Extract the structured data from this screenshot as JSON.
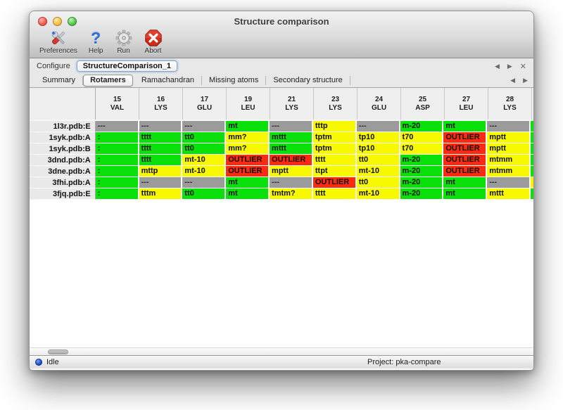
{
  "window": {
    "title": "Structure comparison"
  },
  "toolbar": {
    "items": [
      {
        "label": "Preferences",
        "icon": "preferences-icon"
      },
      {
        "label": "Help",
        "icon": "help-icon"
      },
      {
        "label": "Run",
        "icon": "run-icon"
      },
      {
        "label": "Abort",
        "icon": "abort-icon"
      }
    ]
  },
  "icons": {
    "prev": "◀",
    "next": "▶",
    "close": "✕",
    "help": "?"
  },
  "configure": {
    "label": "Configure",
    "selected": "StructureComparison_1"
  },
  "tabs": {
    "items": [
      "Summary",
      "Rotamers",
      "Ramachandran",
      "Missing atoms",
      "Secondary structure"
    ],
    "active": "Rotamers"
  },
  "colors": {
    "good": "#0ae00a",
    "caution": "#f8f800",
    "outlier": "#fb2a10",
    "missing": "#9b9b9b"
  },
  "table": {
    "columns": [
      {
        "num": "15",
        "res": "VAL"
      },
      {
        "num": "16",
        "res": "LYS"
      },
      {
        "num": "17",
        "res": "GLU"
      },
      {
        "num": "19",
        "res": "LEU"
      },
      {
        "num": "21",
        "res": "LYS"
      },
      {
        "num": "23",
        "res": "LYS"
      },
      {
        "num": "24",
        "res": "GLU"
      },
      {
        "num": "25",
        "res": "ASP"
      },
      {
        "num": "27",
        "res": "LEU"
      },
      {
        "num": "28",
        "res": "LYS"
      }
    ],
    "rows": [
      {
        "label": "1l3r.pdb:E",
        "cells": [
          {
            "v": "---",
            "s": "missing"
          },
          {
            "v": "---",
            "s": "missing"
          },
          {
            "v": "---",
            "s": "missing"
          },
          {
            "v": "mt",
            "s": "good"
          },
          {
            "v": "---",
            "s": "missing"
          },
          {
            "v": "tttp",
            "s": "caution"
          },
          {
            "v": "---",
            "s": "missing"
          },
          {
            "v": "m-20",
            "s": "good"
          },
          {
            "v": "mt",
            "s": "good"
          },
          {
            "v": "---",
            "s": "missing"
          }
        ],
        "overflow": "good"
      },
      {
        "label": "1syk.pdb:A",
        "cells": [
          {
            "v": ":",
            "s": "good"
          },
          {
            "v": "tttt",
            "s": "good"
          },
          {
            "v": "tt0",
            "s": "good"
          },
          {
            "v": "mm?",
            "s": "caution"
          },
          {
            "v": "mttt",
            "s": "good"
          },
          {
            "v": "tptm",
            "s": "caution"
          },
          {
            "v": "tp10",
            "s": "caution"
          },
          {
            "v": "t70",
            "s": "caution"
          },
          {
            "v": "OUTLIER",
            "s": "outlier"
          },
          {
            "v": "mptt",
            "s": "caution"
          }
        ],
        "overflow": "good"
      },
      {
        "label": "1syk.pdb:B",
        "cells": [
          {
            "v": ":",
            "s": "good"
          },
          {
            "v": "tttt",
            "s": "good"
          },
          {
            "v": "tt0",
            "s": "good"
          },
          {
            "v": "mm?",
            "s": "caution"
          },
          {
            "v": "mttt",
            "s": "good"
          },
          {
            "v": "tptm",
            "s": "caution"
          },
          {
            "v": "tp10",
            "s": "caution"
          },
          {
            "v": "t70",
            "s": "caution"
          },
          {
            "v": "OUTLIER",
            "s": "outlier"
          },
          {
            "v": "mptt",
            "s": "caution"
          }
        ],
        "overflow": "good"
      },
      {
        "label": "3dnd.pdb:A",
        "cells": [
          {
            "v": ":",
            "s": "good"
          },
          {
            "v": "tttt",
            "s": "good"
          },
          {
            "v": "mt-10",
            "s": "caution"
          },
          {
            "v": "OUTLIER",
            "s": "outlier"
          },
          {
            "v": "OUTLIER",
            "s": "outlier"
          },
          {
            "v": "tttt",
            "s": "caution"
          },
          {
            "v": "tt0",
            "s": "caution"
          },
          {
            "v": "m-20",
            "s": "good"
          },
          {
            "v": "OUTLIER",
            "s": "outlier"
          },
          {
            "v": "mtmm",
            "s": "caution"
          }
        ],
        "overflow": "good"
      },
      {
        "label": "3dne.pdb:A",
        "cells": [
          {
            "v": ":",
            "s": "good"
          },
          {
            "v": "mttp",
            "s": "caution"
          },
          {
            "v": "mt-10",
            "s": "caution"
          },
          {
            "v": "OUTLIER",
            "s": "outlier"
          },
          {
            "v": "mptt",
            "s": "caution"
          },
          {
            "v": "ttpt",
            "s": "caution"
          },
          {
            "v": "mt-10",
            "s": "caution"
          },
          {
            "v": "m-20",
            "s": "good"
          },
          {
            "v": "OUTLIER",
            "s": "outlier"
          },
          {
            "v": "mtmm",
            "s": "caution"
          }
        ],
        "overflow": "good"
      },
      {
        "label": "3fhi.pdb:A",
        "cells": [
          {
            "v": ":",
            "s": "good"
          },
          {
            "v": "---",
            "s": "missing"
          },
          {
            "v": "---",
            "s": "missing"
          },
          {
            "v": "mt",
            "s": "good"
          },
          {
            "v": "---",
            "s": "missing"
          },
          {
            "v": "OUTLIER",
            "s": "outlier"
          },
          {
            "v": "tt0",
            "s": "caution"
          },
          {
            "v": "m-20",
            "s": "good"
          },
          {
            "v": "mt",
            "s": "good"
          },
          {
            "v": "---",
            "s": "missing"
          }
        ],
        "overflow": "caution"
      },
      {
        "label": "3fjq.pdb:E",
        "cells": [
          {
            "v": ":",
            "s": "good"
          },
          {
            "v": "tttm",
            "s": "caution"
          },
          {
            "v": "tt0",
            "s": "good"
          },
          {
            "v": "mt",
            "s": "good"
          },
          {
            "v": "tmtm?",
            "s": "caution"
          },
          {
            "v": "tttt",
            "s": "caution"
          },
          {
            "v": "mt-10",
            "s": "caution"
          },
          {
            "v": "m-20",
            "s": "good"
          },
          {
            "v": "mt",
            "s": "good"
          },
          {
            "v": "mttt",
            "s": "caution"
          }
        ],
        "overflow": "good"
      }
    ]
  },
  "statusbar": {
    "state": "Idle",
    "project": "Project: pka-compare"
  }
}
